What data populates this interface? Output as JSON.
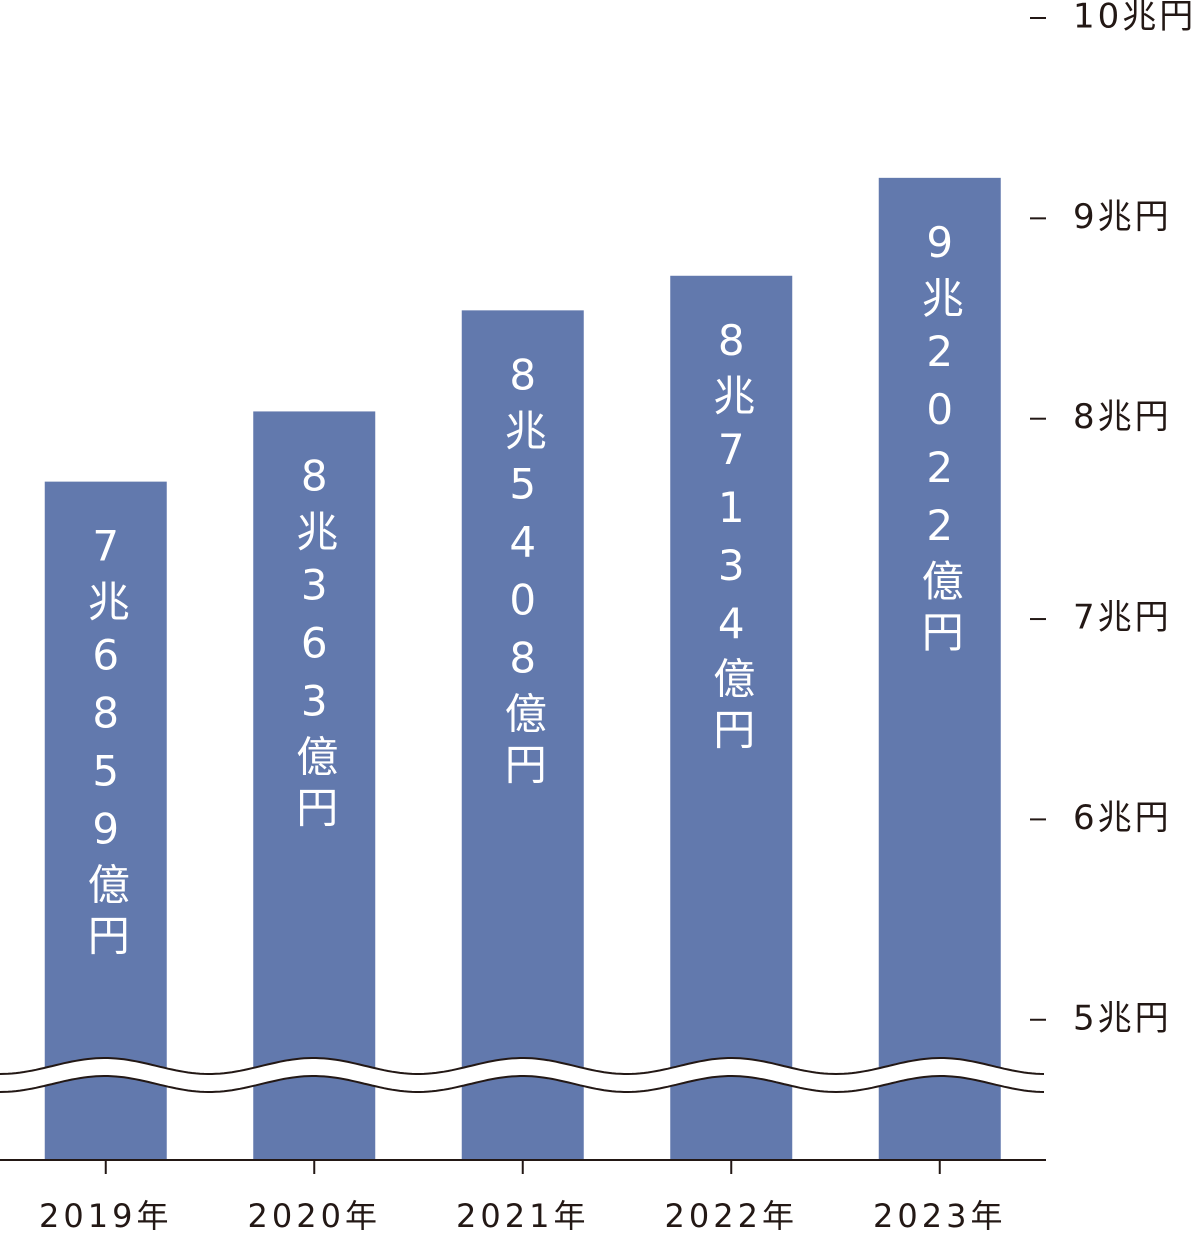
{
  "chart_data": {
    "type": "bar",
    "categories": [
      "2019年",
      "2020年",
      "2021年",
      "2022年",
      "2023年"
    ],
    "values": [
      7.6859,
      8.0363,
      8.5408,
      8.7134,
      9.2022
    ],
    "value_labels": [
      "7兆6859億円",
      "8兆363億円",
      "8兆5408億円",
      "8兆7134億円",
      "9兆2022億円"
    ],
    "color": "#6279ad",
    "ylim": [
      4.3,
      10
    ],
    "yticks": [
      {
        "value": 5,
        "label": "5兆円"
      },
      {
        "value": 6,
        "label": "6兆円"
      },
      {
        "value": 7,
        "label": "7兆円"
      },
      {
        "value": 8,
        "label": "8兆円"
      },
      {
        "value": 9,
        "label": "9兆円"
      },
      {
        "value": 10,
        "label": "10兆円"
      }
    ]
  }
}
